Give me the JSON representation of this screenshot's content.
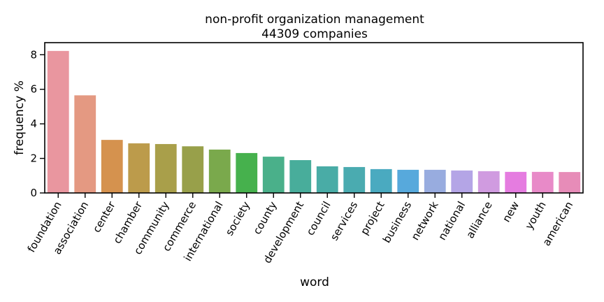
{
  "chart_data": {
    "type": "bar",
    "title": "non-profit organization management",
    "subtitle": "44309 companies",
    "xlabel": "word",
    "ylabel": "frequency %",
    "ylim": [
      0,
      8.7
    ],
    "yticks": [
      0,
      2,
      4,
      6,
      8
    ],
    "grid": false,
    "legend": "none",
    "categories": [
      "foundation",
      "association",
      "center",
      "chamber",
      "community",
      "commerce",
      "international",
      "society",
      "county",
      "development",
      "council",
      "services",
      "project",
      "business",
      "network",
      "national",
      "alliance",
      "new",
      "youth",
      "american"
    ],
    "values": [
      8.22,
      5.65,
      3.07,
      2.87,
      2.83,
      2.7,
      2.51,
      2.31,
      2.1,
      1.9,
      1.54,
      1.5,
      1.38,
      1.34,
      1.34,
      1.3,
      1.26,
      1.22,
      1.22,
      1.21
    ],
    "colors": [
      "#e9969f",
      "#e49982",
      "#d5924e",
      "#bc9b4b",
      "#a99f4a",
      "#98a04a",
      "#7aa94c",
      "#46b14d",
      "#4ab08a",
      "#48ad9b",
      "#49aca6",
      "#4aabb0",
      "#4aaac0",
      "#57a9dc",
      "#98acdf",
      "#b4a5e6",
      "#d09be0",
      "#e57ce0",
      "#e88ac8",
      "#e78cb8"
    ]
  }
}
